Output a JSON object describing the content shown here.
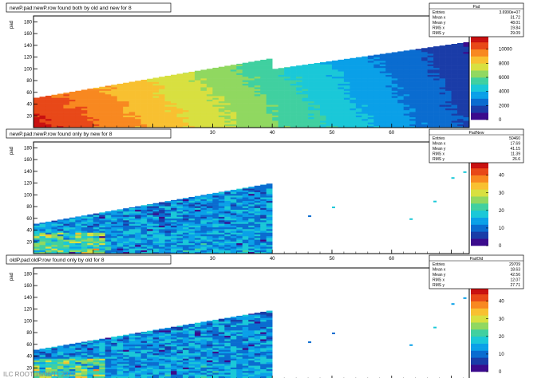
{
  "footer_text": "ILC ROOT 15/06/11 2277",
  "colors": {
    "palette": [
      "#3b0a8c",
      "#1a3ca8",
      "#0a6cd0",
      "#0aa0e8",
      "#1ac8d8",
      "#40d0a0",
      "#90d860",
      "#d8e040",
      "#f8c030",
      "#f88820",
      "#e84818",
      "#c81010"
    ]
  },
  "chart_data": [
    {
      "type": "heatmap",
      "title": "newP.pad:newP.row found both by old and new for 8",
      "xlabel": "row",
      "ylabel": "pad",
      "xlim": [
        0,
        73
      ],
      "ylim": [
        0,
        190
      ],
      "xticks": [
        10,
        20,
        30,
        40,
        50,
        60,
        70
      ],
      "yticks": [
        20,
        40,
        60,
        80,
        100,
        120,
        140,
        160,
        180
      ],
      "zlim": [
        0,
        12000
      ],
      "zticks": [
        0,
        2000,
        4000,
        6000,
        8000,
        10000,
        12000
      ],
      "stats": {
        "name": "Pad",
        "rows": [
          {
            "label": "Entries",
            "value": "3.6990e+07"
          },
          {
            "label": "Mean x",
            "value": "31.72"
          },
          {
            "label": "Mean y",
            "value": "48.01"
          },
          {
            "label": "RMS x",
            "value": "19.84"
          },
          {
            "label": "RMS y",
            "value": "29.09"
          }
        ]
      },
      "band_top": [
        [
          0,
          50
        ],
        [
          40,
          118
        ],
        [
          40.5,
          100
        ],
        [
          73,
          146
        ]
      ],
      "coverage": "full",
      "hot_left": true
    },
    {
      "type": "heatmap",
      "title": "newP.pad:newP.row found only by new for 8",
      "xlabel": "row",
      "ylabel": "pad",
      "xlim": [
        0,
        73
      ],
      "ylim": [
        0,
        190
      ],
      "xticks": [
        10,
        20,
        30,
        40,
        50,
        60,
        70
      ],
      "yticks": [
        20,
        40,
        60,
        80,
        100,
        120,
        140,
        160,
        180
      ],
      "zlim": [
        0,
        48
      ],
      "zticks": [
        0,
        10,
        20,
        30,
        40
      ],
      "stats": {
        "name": "PadNew",
        "rows": [
          {
            "label": "Entries",
            "value": "50460"
          },
          {
            "label": "Mean x",
            "value": "17.69"
          },
          {
            "label": "Mean y",
            "value": "41.15"
          },
          {
            "label": "RMS x",
            "value": "11.39"
          },
          {
            "label": "RMS y",
            "value": "26.6"
          }
        ]
      },
      "band_top": [
        [
          0,
          50
        ],
        [
          40,
          120
        ]
      ],
      "coverage": "left",
      "hot_left": false
    },
    {
      "type": "heatmap",
      "title": "oldP.pad:oldP.row found only by old for 8",
      "xlabel": "row",
      "ylabel": "pad",
      "xlim": [
        0,
        73
      ],
      "ylim": [
        0,
        190
      ],
      "xticks": [
        10,
        20,
        30,
        40,
        50,
        60,
        70
      ],
      "yticks": [
        20,
        40,
        60,
        80,
        100,
        120,
        140,
        160,
        180
      ],
      "zlim": [
        0,
        48
      ],
      "zticks": [
        0,
        10,
        20,
        30,
        40
      ],
      "stats": {
        "name": "PadOld",
        "rows": [
          {
            "label": "Entries",
            "value": "29709"
          },
          {
            "label": "Mean x",
            "value": "18.63"
          },
          {
            "label": "Mean y",
            "value": "42.56"
          },
          {
            "label": "RMS x",
            "value": "12.07"
          },
          {
            "label": "RMS y",
            "value": "27.71"
          }
        ]
      },
      "band_top": [
        [
          0,
          50
        ],
        [
          40,
          118
        ]
      ],
      "coverage": "left",
      "hot_left": false
    }
  ]
}
